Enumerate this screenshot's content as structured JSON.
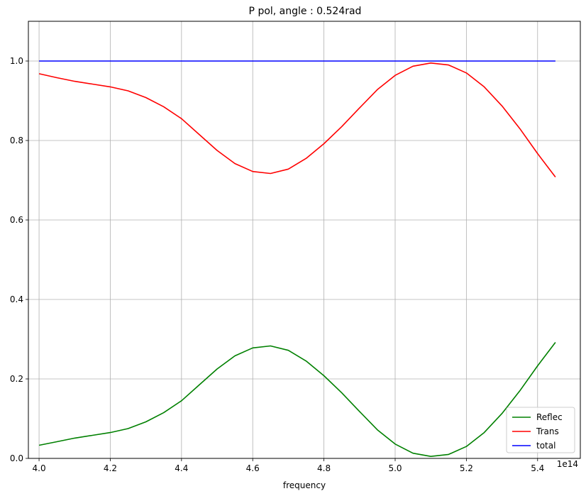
{
  "chart_data": {
    "type": "line",
    "title": "P pol, angle : 0.524rad",
    "xlabel": "frequency",
    "ylabel": "",
    "x_offset_label": "1e14",
    "xlim": [
      3.97,
      5.52
    ],
    "ylim": [
      0.0,
      1.1
    ],
    "xticks": [
      "4.0",
      "4.2",
      "4.4",
      "4.6",
      "4.8",
      "5.0",
      "5.2",
      "5.4"
    ],
    "xtick_values": [
      4.0,
      4.2,
      4.4,
      4.6,
      4.8,
      5.0,
      5.2,
      5.4
    ],
    "yticks": [
      "0.0",
      "0.2",
      "0.4",
      "0.6",
      "0.8",
      "1.0"
    ],
    "ytick_values": [
      0.0,
      0.2,
      0.4,
      0.6,
      0.8,
      1.0
    ],
    "grid": true,
    "legend_position": "bottom-right",
    "x": [
      4.0,
      4.05,
      4.1,
      4.15,
      4.2,
      4.25,
      4.3,
      4.35,
      4.4,
      4.45,
      4.5,
      4.55,
      4.6,
      4.65,
      4.7,
      4.75,
      4.8,
      4.85,
      4.9,
      4.95,
      5.0,
      5.05,
      5.1,
      5.15,
      5.2,
      5.25,
      5.3,
      5.35,
      5.4,
      5.45
    ],
    "series": [
      {
        "name": "Reflec",
        "color": "#008000",
        "values": [
          0.033,
          0.042,
          0.051,
          0.058,
          0.065,
          0.075,
          0.092,
          0.115,
          0.145,
          0.185,
          0.225,
          0.258,
          0.278,
          0.283,
          0.272,
          0.245,
          0.208,
          0.165,
          0.118,
          0.072,
          0.036,
          0.013,
          0.005,
          0.01,
          0.03,
          0.065,
          0.113,
          0.17,
          0.233,
          0.292
        ]
      },
      {
        "name": "Trans",
        "color": "#ff0000",
        "values": [
          0.968,
          0.958,
          0.949,
          0.942,
          0.935,
          0.925,
          0.908,
          0.885,
          0.855,
          0.815,
          0.775,
          0.742,
          0.722,
          0.717,
          0.728,
          0.755,
          0.792,
          0.835,
          0.882,
          0.928,
          0.964,
          0.987,
          0.995,
          0.99,
          0.97,
          0.935,
          0.887,
          0.83,
          0.767,
          0.708
        ]
      },
      {
        "name": "total",
        "color": "#0000ff",
        "values": [
          1.0,
          1.0,
          1.0,
          1.0,
          1.0,
          1.0,
          1.0,
          1.0,
          1.0,
          1.0,
          1.0,
          1.0,
          1.0,
          1.0,
          1.0,
          1.0,
          1.0,
          1.0,
          1.0,
          1.0,
          1.0,
          1.0,
          1.0,
          1.0,
          1.0,
          1.0,
          1.0,
          1.0,
          1.0,
          1.0
        ]
      }
    ]
  }
}
